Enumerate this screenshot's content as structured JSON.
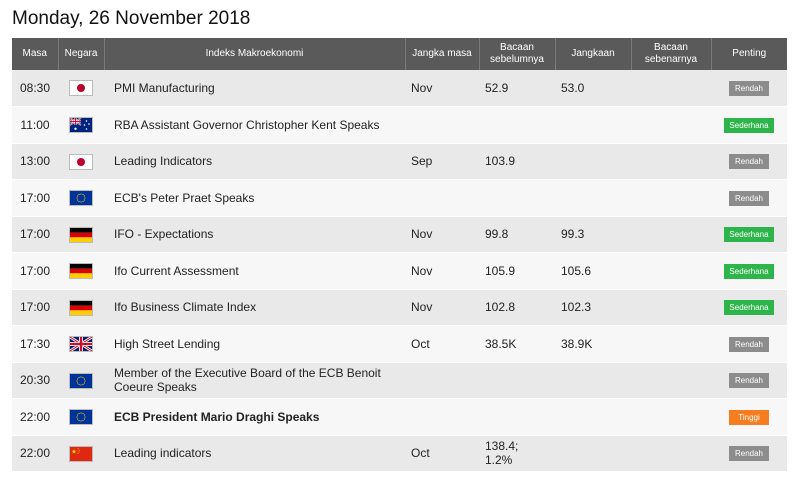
{
  "date_title": "Monday, 26 November 2018",
  "columns": {
    "time": "Masa",
    "country": "Negara",
    "event": "Indeks Makroekonomi",
    "period": "Jangka masa",
    "previous": "Bacaan sebelumnya",
    "forecast": "Jangkaan",
    "actual": "Bacaan sebenarnya",
    "importance": "Penting"
  },
  "colors": {
    "header_bg": "#5a5a5a",
    "row_odd": "#e9e9e9",
    "row_even": "#f7f7f7",
    "importance_low": "#8c8c8c",
    "importance_moderate": "#2db54b",
    "importance_high": "#f57c1f"
  },
  "rows": [
    {
      "time": "08:30",
      "flag": "japan-flag-icon",
      "event": "PMI Manufacturing",
      "period": "Nov",
      "previous": "52.9",
      "forecast": "53.0",
      "actual": "",
      "importance": "Rendah",
      "level": "low",
      "bold": false
    },
    {
      "time": "11:00",
      "flag": "australia-flag-icon",
      "event": "RBA Assistant Governor Christopher Kent Speaks",
      "period": "",
      "previous": "",
      "forecast": "",
      "actual": "",
      "importance": "Sederhana",
      "level": "mid",
      "bold": false
    },
    {
      "time": "13:00",
      "flag": "japan-flag-icon",
      "event": "Leading Indicators",
      "period": "Sep",
      "previous": "103.9",
      "forecast": "",
      "actual": "",
      "importance": "Rendah",
      "level": "low",
      "bold": false
    },
    {
      "time": "17:00",
      "flag": "eu-flag-icon",
      "event": "ECB's Peter Praet Speaks",
      "period": "",
      "previous": "",
      "forecast": "",
      "actual": "",
      "importance": "Rendah",
      "level": "low",
      "bold": false
    },
    {
      "time": "17:00",
      "flag": "germany-flag-icon",
      "event": "IFO - Expectations",
      "period": "Nov",
      "previous": "99.8",
      "forecast": "99.3",
      "actual": "",
      "importance": "Sederhana",
      "level": "mid",
      "bold": false
    },
    {
      "time": "17:00",
      "flag": "germany-flag-icon",
      "event": "Ifo Current Assessment",
      "period": "Nov",
      "previous": "105.9",
      "forecast": "105.6",
      "actual": "",
      "importance": "Sederhana",
      "level": "mid",
      "bold": false
    },
    {
      "time": "17:00",
      "flag": "germany-flag-icon",
      "event": "Ifo Business Climate Index",
      "period": "Nov",
      "previous": "102.8",
      "forecast": "102.3",
      "actual": "",
      "importance": "Sederhana",
      "level": "mid",
      "bold": false
    },
    {
      "time": "17:30",
      "flag": "uk-flag-icon",
      "event": "High Street Lending",
      "period": "Oct",
      "previous": "38.5K",
      "forecast": "38.9K",
      "actual": "",
      "importance": "Rendah",
      "level": "low",
      "bold": false
    },
    {
      "time": "20:30",
      "flag": "eu-flag-icon",
      "event": "Member of the Executive Board of the ECB Benoit Coeure Speaks",
      "period": "",
      "previous": "",
      "forecast": "",
      "actual": "",
      "importance": "Rendah",
      "level": "low",
      "bold": false
    },
    {
      "time": "22:00",
      "flag": "eu-flag-icon",
      "event": "ECB President Mario Draghi Speaks",
      "period": "",
      "previous": "",
      "forecast": "",
      "actual": "",
      "importance": "Tinggi",
      "level": "high",
      "bold": true
    },
    {
      "time": "22:00",
      "flag": "china-flag-icon",
      "event": "Leading indicators",
      "period": "Oct",
      "previous": "138.4; 1.2%",
      "forecast": "",
      "actual": "",
      "importance": "Rendah",
      "level": "low",
      "bold": false
    }
  ]
}
